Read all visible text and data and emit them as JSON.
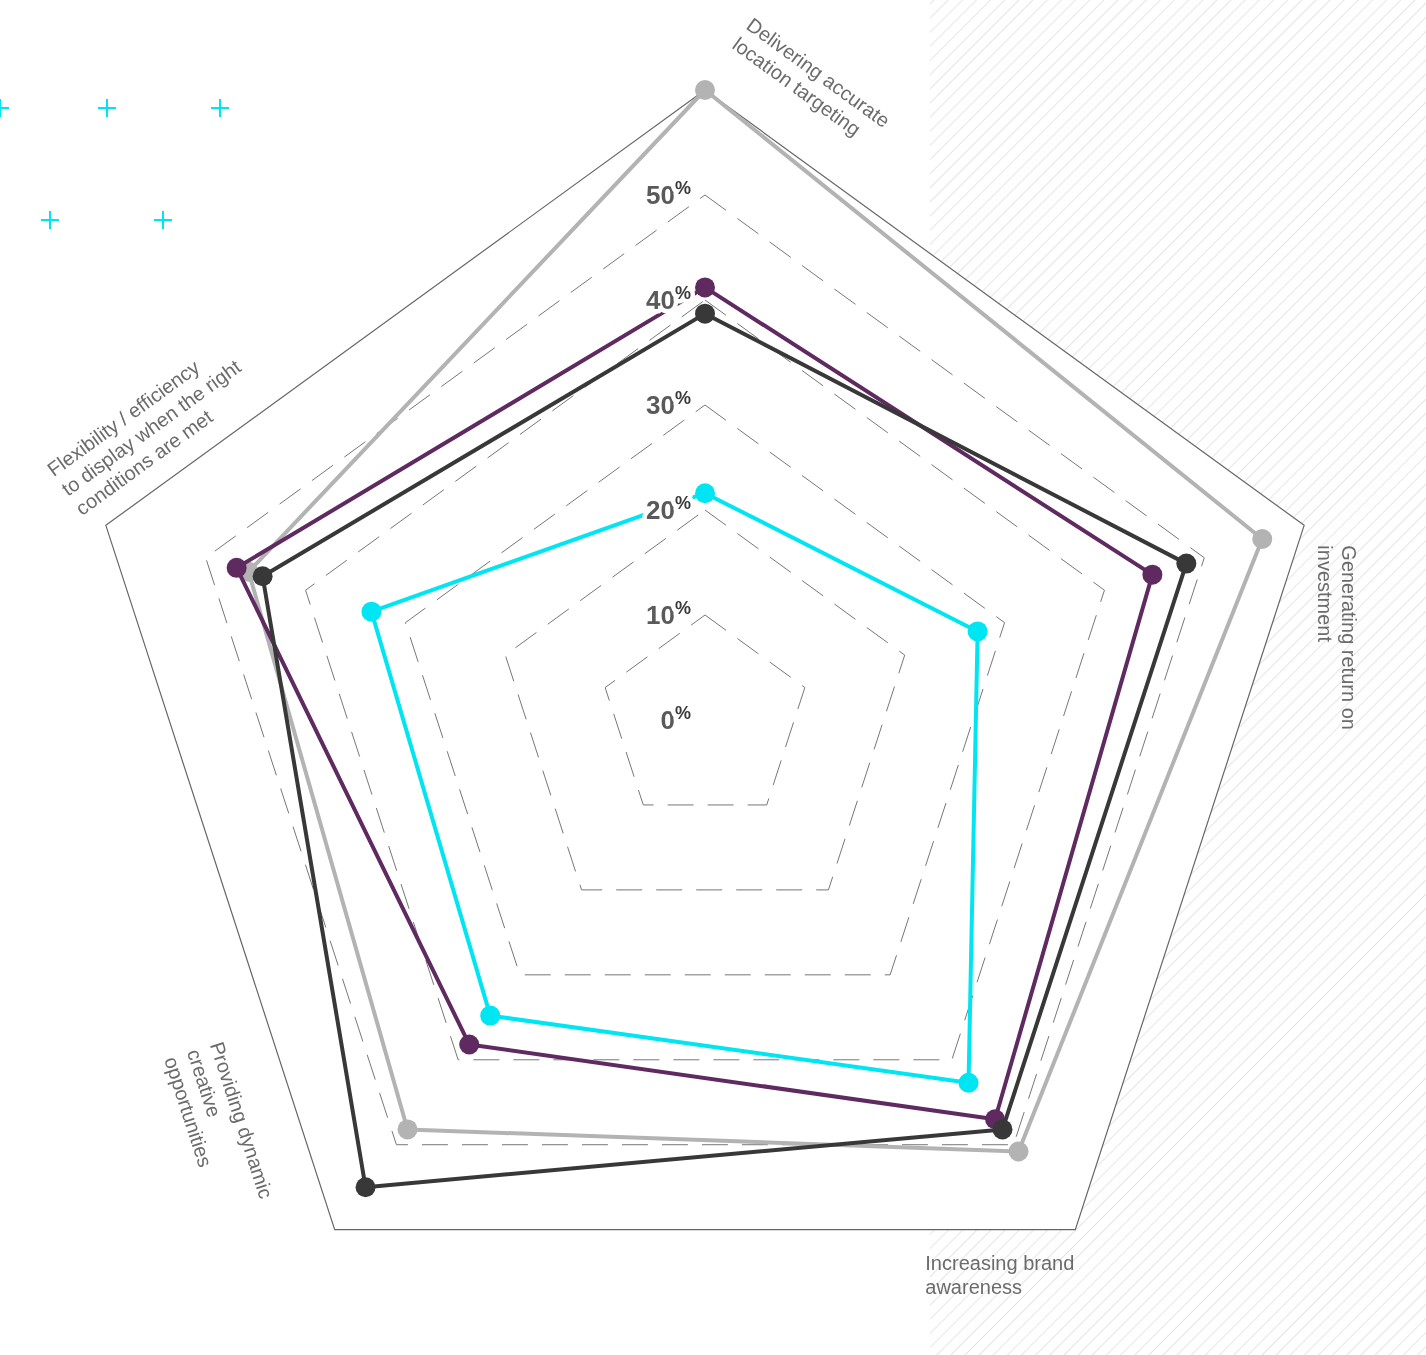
{
  "chart_data": {
    "type": "radar",
    "categories": [
      "Delivering accurate location targeting",
      "Generating return on investment",
      "Increasing brand awareness",
      "Providing dynamic creative opportunities",
      "Flexibility / efficiency to display when the right conditions are met"
    ],
    "series": [
      {
        "color": "#b3b3b3",
        "values": [
          60,
          55.8,
          50.8,
          48.2,
          45.7
        ]
      },
      {
        "color": "#5e2a60",
        "values": [
          41.2,
          44.8,
          47,
          38.2,
          46.9
        ]
      },
      {
        "color": "#383838",
        "values": [
          38.7,
          48.2,
          48.2,
          55,
          44.3
        ]
      },
      {
        "color": "#00e5f2",
        "values": [
          21.6,
          27.3,
          42.7,
          34.8,
          33.4
        ]
      }
    ],
    "ylim": [
      0,
      60
    ],
    "yticks": [
      {
        "value": 0,
        "label": "0$^{%}$"
      },
      {
        "value": 10,
        "label": "10$^{%}$"
      },
      {
        "value": 20,
        "label": "20$^{%}$"
      },
      {
        "value": 30,
        "label": "30$^{%}$"
      },
      {
        "value": 40,
        "label": "40$^{%}$"
      },
      {
        "value": 50,
        "label": "50$^{%}$"
      }
    ],
    "grid": true,
    "marker": "circle",
    "line_style": "solid"
  }
}
